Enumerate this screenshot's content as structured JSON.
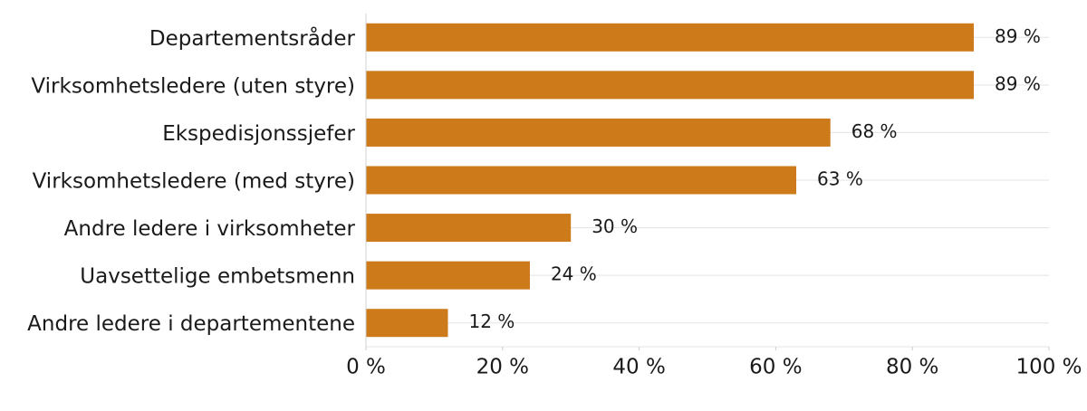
{
  "chart_data": {
    "type": "bar",
    "orientation": "horizontal",
    "categories": [
      "Departementsråder",
      "Virksomhetsledere (uten styre)",
      "Ekspedisjonssjefer",
      "Virksomhetsledere (med styre)",
      "Andre ledere i virksomheter",
      "Uavsettelige embetsmenn",
      "Andre ledere i departementene"
    ],
    "values": [
      89,
      89,
      68,
      63,
      30,
      24,
      12
    ],
    "value_labels": [
      "89 %",
      "89 %",
      "68 %",
      "63 %",
      "30 %",
      "24 %",
      "12 %"
    ],
    "color": "#cc7a1a",
    "xlim": [
      0,
      100
    ],
    "xticks": [
      {
        "value": 0,
        "label": "0 %"
      },
      {
        "value": 20,
        "label": "20 %"
      },
      {
        "value": 40,
        "label": "40 %"
      },
      {
        "value": 60,
        "label": "60 %"
      },
      {
        "value": 80,
        "label": "80 %"
      },
      {
        "value": 100,
        "label": "100 %"
      }
    ],
    "grid": true
  }
}
